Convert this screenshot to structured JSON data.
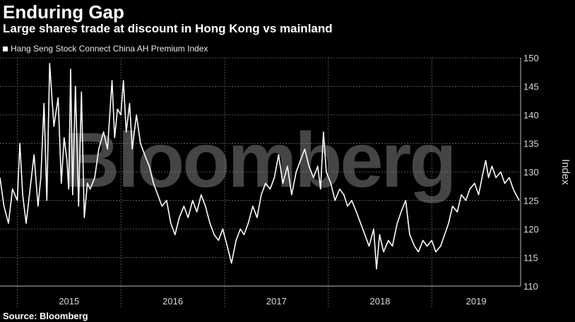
{
  "title": "Enduring Gap",
  "subtitle": "Large shares trade at discount in Hong Kong vs mainland",
  "source": "Source: Bloomberg",
  "watermark": "Bloomberg",
  "colors": {
    "background": "#000000",
    "line": "#ffffff",
    "grid": "#555555"
  },
  "chart_data": {
    "type": "line",
    "ylabel": "Index",
    "ylim": [
      110,
      150
    ],
    "yticks": [
      110,
      115,
      120,
      125,
      130,
      135,
      140,
      145,
      150
    ],
    "xlim": [
      "2014-11-01",
      "2019-11-10"
    ],
    "x_tick_labels": [
      "2015",
      "2016",
      "2017",
      "2018",
      "2019"
    ],
    "grid": true,
    "legend_position": "top-left",
    "series": [
      {
        "name": "Hang Seng Stock Connect China AH Premium Index",
        "points": [
          [
            "2014-11-01",
            129
          ],
          [
            "2014-11-15",
            124
          ],
          [
            "2014-12-01",
            121
          ],
          [
            "2014-12-15",
            127
          ],
          [
            "2015-01-01",
            125
          ],
          [
            "2015-01-10",
            135
          ],
          [
            "2015-01-20",
            126
          ],
          [
            "2015-02-01",
            121
          ],
          [
            "2015-02-15",
            127
          ],
          [
            "2015-03-01",
            133
          ],
          [
            "2015-03-15",
            124
          ],
          [
            "2015-03-25",
            129
          ],
          [
            "2015-04-05",
            142
          ],
          [
            "2015-04-15",
            125
          ],
          [
            "2015-04-25",
            149
          ],
          [
            "2015-05-10",
            138
          ],
          [
            "2015-05-25",
            143
          ],
          [
            "2015-06-05",
            128
          ],
          [
            "2015-06-15",
            136
          ],
          [
            "2015-06-25",
            132
          ],
          [
            "2015-07-01",
            127
          ],
          [
            "2015-07-08",
            148
          ],
          [
            "2015-07-15",
            126
          ],
          [
            "2015-07-25",
            145
          ],
          [
            "2015-08-05",
            124
          ],
          [
            "2015-08-15",
            144
          ],
          [
            "2015-08-25",
            122
          ],
          [
            "2015-09-05",
            128
          ],
          [
            "2015-09-15",
            127
          ],
          [
            "2015-10-01",
            129
          ],
          [
            "2015-10-15",
            134
          ],
          [
            "2015-11-01",
            137
          ],
          [
            "2015-11-15",
            134
          ],
          [
            "2015-12-01",
            146
          ],
          [
            "2015-12-10",
            136
          ],
          [
            "2015-12-20",
            141
          ],
          [
            "2016-01-01",
            140
          ],
          [
            "2016-01-10",
            146
          ],
          [
            "2016-01-20",
            137
          ],
          [
            "2016-02-01",
            142
          ],
          [
            "2016-02-10",
            134
          ],
          [
            "2016-02-25",
            140
          ],
          [
            "2016-03-10",
            135
          ],
          [
            "2016-03-25",
            133
          ],
          [
            "2016-04-10",
            131
          ],
          [
            "2016-04-25",
            128
          ],
          [
            "2016-05-10",
            126
          ],
          [
            "2016-05-25",
            124
          ],
          [
            "2016-06-10",
            125
          ],
          [
            "2016-06-25",
            121
          ],
          [
            "2016-07-10",
            119
          ],
          [
            "2016-07-25",
            122
          ],
          [
            "2016-08-10",
            124
          ],
          [
            "2016-08-25",
            122
          ],
          [
            "2016-09-10",
            125
          ],
          [
            "2016-09-25",
            123
          ],
          [
            "2016-10-10",
            126
          ],
          [
            "2016-10-25",
            124
          ],
          [
            "2016-11-10",
            121
          ],
          [
            "2016-11-25",
            119
          ],
          [
            "2016-12-10",
            118
          ],
          [
            "2016-12-25",
            120
          ],
          [
            "2017-01-10",
            117
          ],
          [
            "2017-01-25",
            114
          ],
          [
            "2017-02-10",
            118
          ],
          [
            "2017-02-25",
            120
          ],
          [
            "2017-03-10",
            119
          ],
          [
            "2017-03-25",
            121
          ],
          [
            "2017-04-10",
            124
          ],
          [
            "2017-04-25",
            122
          ],
          [
            "2017-05-10",
            126
          ],
          [
            "2017-05-25",
            128
          ],
          [
            "2017-06-10",
            127
          ],
          [
            "2017-06-25",
            129
          ],
          [
            "2017-07-10",
            133
          ],
          [
            "2017-07-25",
            128
          ],
          [
            "2017-08-10",
            131
          ],
          [
            "2017-08-25",
            126
          ],
          [
            "2017-09-10",
            130
          ],
          [
            "2017-09-25",
            132
          ],
          [
            "2017-10-10",
            134
          ],
          [
            "2017-10-25",
            131
          ],
          [
            "2017-11-10",
            129
          ],
          [
            "2017-11-25",
            131
          ],
          [
            "2017-12-05",
            127
          ],
          [
            "2017-12-15",
            137
          ],
          [
            "2017-12-25",
            130
          ],
          [
            "2018-01-10",
            128
          ],
          [
            "2018-01-25",
            125
          ],
          [
            "2018-02-10",
            127
          ],
          [
            "2018-02-25",
            126
          ],
          [
            "2018-03-10",
            124
          ],
          [
            "2018-03-25",
            125
          ],
          [
            "2018-04-10",
            123
          ],
          [
            "2018-04-25",
            121
          ],
          [
            "2018-05-10",
            119
          ],
          [
            "2018-05-25",
            117
          ],
          [
            "2018-06-10",
            120
          ],
          [
            "2018-06-20",
            113
          ],
          [
            "2018-07-01",
            119
          ],
          [
            "2018-07-15",
            116
          ],
          [
            "2018-08-01",
            118
          ],
          [
            "2018-08-15",
            117
          ],
          [
            "2018-09-01",
            121
          ],
          [
            "2018-09-15",
            123
          ],
          [
            "2018-10-01",
            125
          ],
          [
            "2018-10-15",
            119
          ],
          [
            "2018-11-01",
            117
          ],
          [
            "2018-11-15",
            116
          ],
          [
            "2018-12-01",
            118
          ],
          [
            "2018-12-15",
            117
          ],
          [
            "2019-01-01",
            118
          ],
          [
            "2019-01-15",
            116
          ],
          [
            "2019-02-01",
            117
          ],
          [
            "2019-02-15",
            119
          ],
          [
            "2019-03-01",
            121
          ],
          [
            "2019-03-15",
            124
          ],
          [
            "2019-04-01",
            123
          ],
          [
            "2019-04-15",
            126
          ],
          [
            "2019-05-01",
            125
          ],
          [
            "2019-05-15",
            127
          ],
          [
            "2019-06-01",
            128
          ],
          [
            "2019-06-15",
            126
          ],
          [
            "2019-07-01",
            130
          ],
          [
            "2019-07-10",
            132
          ],
          [
            "2019-07-20",
            129
          ],
          [
            "2019-08-01",
            131
          ],
          [
            "2019-08-15",
            129
          ],
          [
            "2019-09-01",
            130
          ],
          [
            "2019-09-15",
            128
          ],
          [
            "2019-10-01",
            129
          ],
          [
            "2019-10-15",
            127
          ],
          [
            "2019-10-25",
            126
          ],
          [
            "2019-11-05",
            125
          ]
        ]
      }
    ]
  }
}
